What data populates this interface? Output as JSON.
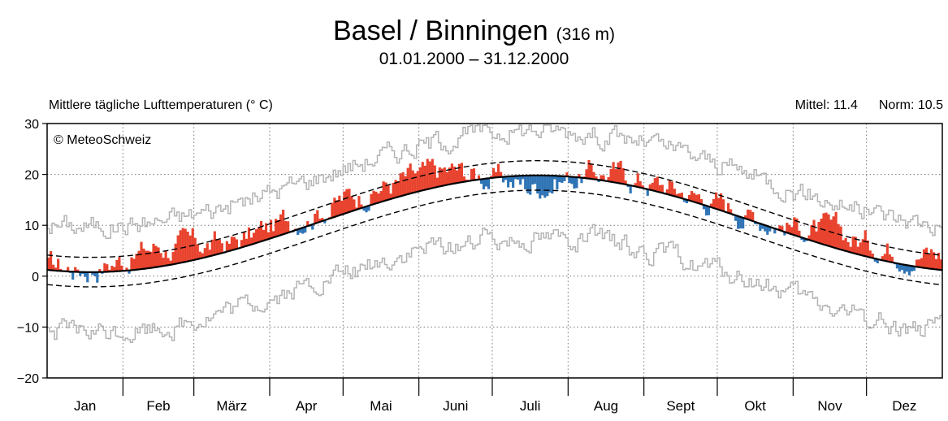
{
  "header": {
    "station": "Basel / Binningen",
    "elevation": "(316 m)",
    "period": "01.01.2000 – 31.12.2000"
  },
  "chart_data": {
    "type": "bar",
    "title": "Basel / Binningen",
    "ylabel": "Mittlere tägliche Lufttemperaturen (° C)",
    "ylim": [
      -20,
      30
    ],
    "yticks": [
      30,
      20,
      10,
      0,
      -10,
      -20
    ],
    "mean_label": "Mittel: 11.4",
    "norm_label": "Norm: 10.5",
    "copyright": "© MeteoSchweiz",
    "months": [
      "Jan",
      "Feb",
      "März",
      "Apr",
      "Mai",
      "Juni",
      "Juli",
      "Aug",
      "Sept",
      "Okt",
      "Nov",
      "Dez"
    ],
    "month_days": [
      31,
      29,
      31,
      30,
      31,
      30,
      31,
      31,
      30,
      31,
      30,
      31
    ],
    "norm_curve": {
      "mean": 10.3,
      "amplitude": 9.5,
      "min_day": 18
    },
    "std_band": 2.9,
    "record_high_offset": 9,
    "record_low_offset": -12,
    "monthly_anomaly": [
      {
        "month": "Jan",
        "anomaly": 0.8
      },
      {
        "month": "Feb",
        "anomaly": 4.2
      },
      {
        "month": "März",
        "anomaly": 1.3
      },
      {
        "month": "Apr",
        "anomaly": 2.7
      },
      {
        "month": "Mai",
        "anomaly": 3.1
      },
      {
        "month": "Juni",
        "anomaly": 2.3
      },
      {
        "month": "Juli",
        "anomaly": -2.2
      },
      {
        "month": "Aug",
        "anomaly": 1.8
      },
      {
        "month": "Sept",
        "anomaly": 1.5
      },
      {
        "month": "Okt",
        "anomaly": 1.3
      },
      {
        "month": "Nov",
        "anomaly": 2.6
      },
      {
        "month": "Dez",
        "anomaly": 3.2
      }
    ],
    "colors": {
      "above": "#e8432e",
      "below": "#2f74b5",
      "record": "#b4b4b4",
      "grid": "#777777"
    }
  }
}
